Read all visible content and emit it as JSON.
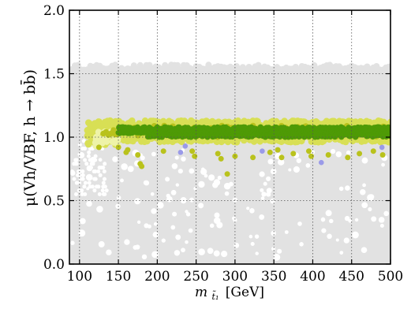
{
  "chart_data": {
    "type": "scatter",
    "title": "",
    "xlabel_var": "m",
    "xlabel_sub": "t̃₁",
    "xlabel_unit": "[GeV]",
    "ylabel": "μ(Vh/VBF, h → bb̄)",
    "xlim": [
      87,
      500
    ],
    "ylim": [
      0.0,
      2.0
    ],
    "x_ticks": [
      "100",
      "150",
      "200",
      "250",
      "300",
      "350",
      "400",
      "450",
      "500"
    ],
    "y_ticks": [
      "0.0",
      "0.5",
      "1.0",
      "1.5",
      "2.0"
    ],
    "grid": true,
    "legend": "none",
    "series": [
      {
        "color": "#e2e2e2",
        "description_region": {
          "x": [
            87,
            500
          ],
          "y": [
            0.0,
            1.55
          ]
        }
      },
      {
        "color": "#d8df55",
        "band": {
          "x": [
            110,
            500
          ],
          "y_low": 0.96,
          "y_high": 1.13
        }
      },
      {
        "color": "#b9c21c",
        "scattered_points": [
          [
            125,
            0.92
          ],
          [
            150,
            0.92
          ],
          [
            160,
            0.88
          ],
          [
            162,
            0.9
          ],
          [
            175,
            0.86
          ],
          [
            178,
            0.79
          ],
          [
            180,
            0.77
          ],
          [
            208,
            0.89
          ],
          [
            245,
            0.89
          ],
          [
            248,
            0.85
          ],
          [
            278,
            0.87
          ],
          [
            282,
            0.83
          ],
          [
            290,
            0.71
          ],
          [
            300,
            0.85
          ],
          [
            323,
            0.84
          ],
          [
            345,
            0.88
          ],
          [
            355,
            0.9
          ],
          [
            360,
            0.84
          ],
          [
            375,
            0.87
          ],
          [
            395,
            0.89
          ],
          [
            398,
            0.85
          ],
          [
            420,
            0.86
          ],
          [
            445,
            0.84
          ],
          [
            460,
            0.87
          ],
          [
            478,
            0.89
          ],
          [
            490,
            0.86
          ]
        ]
      },
      {
        "color": "#4e9a06",
        "band": {
          "x": [
            150,
            500
          ],
          "y_low": 1.0,
          "y_high": 1.08
        }
      },
      {
        "color": "#9a9ae8",
        "scattered_points": [
          [
            230,
            0.88
          ],
          [
            236,
            0.93
          ],
          [
            335,
            0.89
          ],
          [
            411,
            0.8
          ],
          [
            489,
            0.92
          ]
        ]
      }
    ],
    "colors": {
      "background_points": "#e2e2e2",
      "yellow_points": "#d8df55",
      "olive_points": "#b9c21c",
      "green_points": "#4e9a06",
      "blue_points": "#9a9ae8",
      "axis": "#000000"
    }
  }
}
